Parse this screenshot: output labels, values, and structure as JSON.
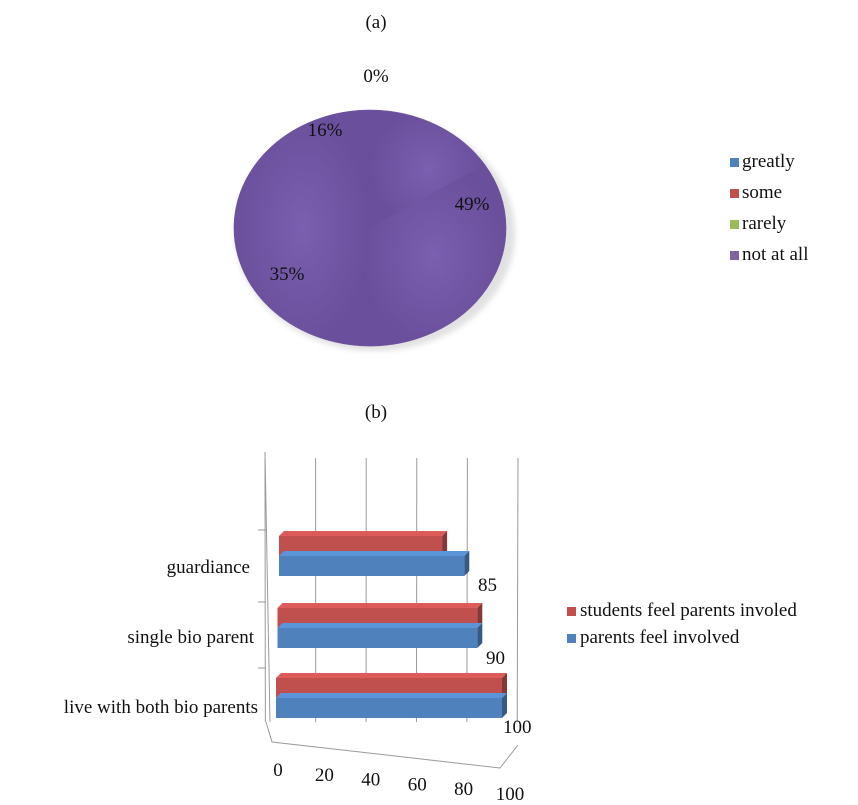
{
  "chart_data": [
    {
      "type": "pie",
      "title": "(a)",
      "categories": [
        "greatly",
        "some",
        "rarely",
        "not at all"
      ],
      "values": [
        0,
        16,
        35,
        49
      ],
      "value_labels": [
        "0%",
        "16%",
        "35%",
        "49%"
      ],
      "colors": [
        "#4F81BD",
        "#C0504D",
        "#9BBB59",
        "#8064A2"
      ],
      "legend_position": "right"
    },
    {
      "type": "bar",
      "orientation": "horizontal",
      "style": "3d",
      "title": "(b)",
      "categories": [
        "live with both bio parents",
        "single bio parent",
        "guardiance"
      ],
      "series": [
        {
          "name": "parents feel involved",
          "values": [
            100,
            90,
            85
          ],
          "color": "#4F81BD"
        },
        {
          "name": "students feel parents involed",
          "values": [
            100,
            90,
            70
          ],
          "color": "#C0504D"
        }
      ],
      "data_labels": [
        "100",
        "90",
        "85"
      ],
      "xlim": [
        0,
        100
      ],
      "x_ticks": [
        "0",
        "20",
        "40",
        "60",
        "80",
        "100"
      ],
      "grid": true,
      "legend_order": [
        "students feel parents involed",
        "parents feel involved"
      ],
      "legend_position": "right"
    }
  ]
}
